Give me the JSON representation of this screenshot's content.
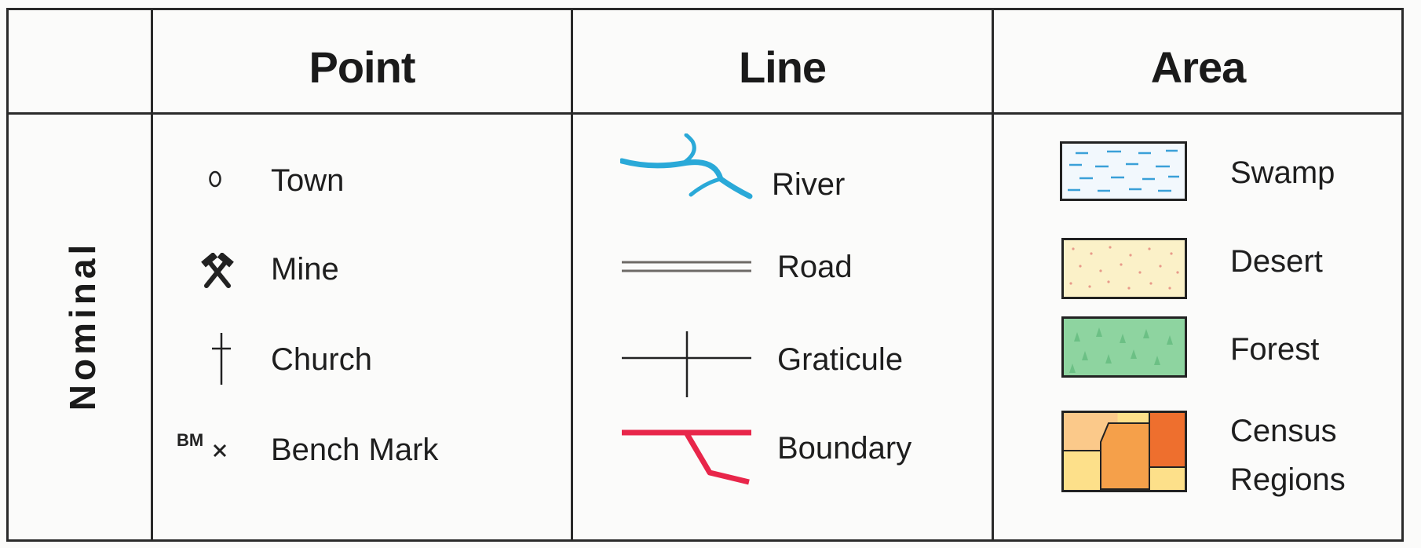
{
  "table": {
    "row_label": "Nominal",
    "headers": {
      "point": "Point",
      "line": "Line",
      "area": "Area"
    },
    "point_items": [
      {
        "label": "Town",
        "icon": "circle-icon"
      },
      {
        "label": "Mine",
        "icon": "crossed-hammers-icon"
      },
      {
        "label": "Church",
        "icon": "cross-icon"
      },
      {
        "label": "Bench Mark",
        "icon": "bench-mark-icon",
        "symbol_text": "BM"
      }
    ],
    "line_items": [
      {
        "label": "River",
        "icon": "river-icon",
        "color": "#2aa9d8"
      },
      {
        "label": "Road",
        "icon": "road-icon",
        "color": "#6d6a66"
      },
      {
        "label": "Graticule",
        "icon": "graticule-icon",
        "color": "#222222"
      },
      {
        "label": "Boundary",
        "icon": "boundary-icon",
        "color": "#e8264a"
      }
    ],
    "area_items": [
      {
        "label": "Swamp",
        "icon": "swamp-swatch-icon",
        "color": "#f2f8fd"
      },
      {
        "label": "Desert",
        "icon": "desert-swatch-icon",
        "color": "#fbf1c8"
      },
      {
        "label": "Forest",
        "icon": "forest-swatch-icon",
        "color": "#8ed4a0"
      },
      {
        "label_line1": "Census",
        "label_line2": "Regions",
        "icon": "census-regions-swatch-icon",
        "colors": [
          "#fde08a",
          "#fbbf78",
          "#f5a04a",
          "#ee6f2e"
        ]
      }
    ]
  }
}
